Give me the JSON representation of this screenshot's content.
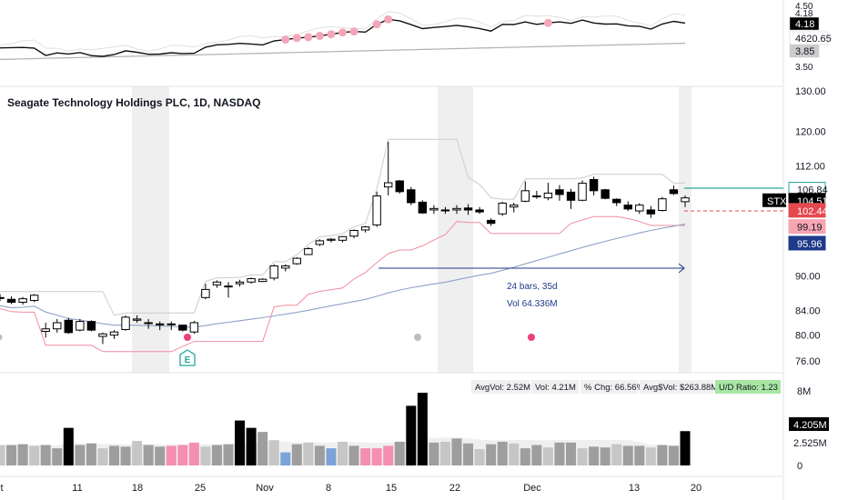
{
  "chart_data": {
    "type": "candlestick",
    "title": "Seagate Technology Holdings PLC, 1D, NASDAQ",
    "symbol": "STX",
    "x_tick_labels": [
      "t",
      "11",
      "18",
      "25",
      "Nov",
      "8",
      "15",
      "22",
      "Dec",
      "13",
      "20"
    ],
    "price_axis": {
      "ticks": [
        "130.00",
        "120.00",
        "112.00",
        "106.84",
        "104.51",
        "102.44",
        "99.19",
        "95.96",
        "90.00",
        "84.00",
        "80.00",
        "76.00"
      ],
      "scale": "log",
      "range": [
        74.5,
        131
      ]
    },
    "price_labels": [
      {
        "value": "106.84",
        "bg": "#ffffff",
        "fg": "#131722",
        "border": "#26a69a"
      },
      {
        "value": "104.51",
        "bg": "#000000",
        "fg": "#ffffff",
        "border": "#000000"
      },
      {
        "value": "102.44",
        "bg": "#e5484d",
        "fg": "#ffffff",
        "border": "#e5484d"
      },
      {
        "value": "99.19",
        "bg": "#f6a5b3",
        "fg": "#131722",
        "border": "#f6a5b3"
      },
      {
        "value": "95.96",
        "bg": "#1e3a8a",
        "fg": "#ffffff",
        "border": "#1e3a8a"
      }
    ],
    "symbol_tag": "STX",
    "candles": [
      [
        86.2,
        86.8,
        85.6,
        86.1
      ],
      [
        85.9,
        86.4,
        85.1,
        85.4
      ],
      [
        85.4,
        86.3,
        85.0,
        86.0
      ],
      [
        85.7,
        86.8,
        85.4,
        86.6
      ],
      [
        80.6,
        82.0,
        79.6,
        81.0
      ],
      [
        81.0,
        82.6,
        80.4,
        82.0
      ],
      [
        82.4,
        82.8,
        80.2,
        80.4
      ],
      [
        80.8,
        82.6,
        80.6,
        82.2
      ],
      [
        82.2,
        82.4,
        80.6,
        80.8
      ],
      [
        79.8,
        80.4,
        78.6,
        80.2
      ],
      [
        80.0,
        80.8,
        79.4,
        80.5
      ],
      [
        80.9,
        83.2,
        80.7,
        82.9
      ],
      [
        82.4,
        83.2,
        82.0,
        82.6
      ],
      [
        82.0,
        82.6,
        81.0,
        82.0
      ],
      [
        81.8,
        82.2,
        80.8,
        81.8
      ],
      [
        81.8,
        82.2,
        80.8,
        81.8
      ],
      [
        81.6,
        81.6,
        80.6,
        80.8
      ],
      [
        80.5,
        82.3,
        80.2,
        82.0
      ],
      [
        86.2,
        88.6,
        85.9,
        87.6
      ],
      [
        88.4,
        89.2,
        87.9,
        88.9
      ],
      [
        88.2,
        88.9,
        86.2,
        88.2
      ],
      [
        88.6,
        89.3,
        88.1,
        88.9
      ],
      [
        88.9,
        89.7,
        88.6,
        89.5
      ],
      [
        89.0,
        89.6,
        88.9,
        89.4
      ],
      [
        89.6,
        92.1,
        89.2,
        91.8
      ],
      [
        91.4,
        92.1,
        90.8,
        91.8
      ],
      [
        92.2,
        93.4,
        92.0,
        93.2
      ],
      [
        93.9,
        95.3,
        93.8,
        95.0
      ],
      [
        95.8,
        96.8,
        95.5,
        96.5
      ],
      [
        96.6,
        97.0,
        96.2,
        96.8
      ],
      [
        96.6,
        97.4,
        96.2,
        97.3
      ],
      [
        97.4,
        98.7,
        97.0,
        98.5
      ],
      [
        98.6,
        99.4,
        98.1,
        99.2
      ],
      [
        99.6,
        106.4,
        99.2,
        105.5
      ],
      [
        107.4,
        117.5,
        105.6,
        108.3
      ],
      [
        108.7,
        108.9,
        106.0,
        106.4
      ],
      [
        106.8,
        107.4,
        103.6,
        104.1
      ],
      [
        104.2,
        104.6,
        101.8,
        102.0
      ],
      [
        102.6,
        103.6,
        101.8,
        102.9
      ],
      [
        102.6,
        103.2,
        101.8,
        102.5
      ],
      [
        102.6,
        103.6,
        101.8,
        102.9
      ],
      [
        103.0,
        103.8,
        101.6,
        102.6
      ],
      [
        102.6,
        103.2,
        101.8,
        102.2
      ],
      [
        100.5,
        100.9,
        99.4,
        99.9
      ],
      [
        101.8,
        104.3,
        101.4,
        104.0
      ],
      [
        103.2,
        104.1,
        102.1,
        103.6
      ],
      [
        104.4,
        108.6,
        104.2,
        106.6
      ],
      [
        105.5,
        106.6,
        104.9,
        105.5
      ],
      [
        105.1,
        108.3,
        104.6,
        106.1
      ],
      [
        106.8,
        107.8,
        104.5,
        105.8
      ],
      [
        106.3,
        107.0,
        102.8,
        104.6
      ],
      [
        104.6,
        108.8,
        104.4,
        108.2
      ],
      [
        109.0,
        109.6,
        105.6,
        106.6
      ],
      [
        106.8,
        107.0,
        104.8,
        105.0
      ],
      [
        104.8,
        105.0,
        103.4,
        104.1
      ],
      [
        103.6,
        104.4,
        102.4,
        102.8
      ],
      [
        102.4,
        104.0,
        101.8,
        103.6
      ],
      [
        102.6,
        103.4,
        101.0,
        101.8
      ],
      [
        102.5,
        105.3,
        102.3,
        104.9
      ],
      [
        106.8,
        107.7,
        105.7,
        106.0
      ],
      [
        104.3,
        105.6,
        103.2,
        105.1
      ]
    ],
    "volume_panel": {
      "axis_ticks": [
        "8M",
        "4.205M",
        "2.525M",
        "0"
      ],
      "value_labels": [
        {
          "value": "4.205M",
          "bg": "#000000",
          "fg": "#ffffff"
        },
        {
          "value": "2.525M",
          "bg": "#ffffff",
          "fg": "#131722"
        }
      ],
      "stats": [
        "AvgVol: 2.52M",
        "Vol: 4.21M",
        "% Chg: 66.56%",
        "Avg$Vol: $263.88M",
        "U/D Ratio: 1.23"
      ],
      "volumes": [
        2.5,
        2.5,
        2.6,
        2.4,
        2.5,
        2.1,
        4.6,
        2.5,
        2.7,
        2.1,
        2.4,
        2.3,
        3.0,
        2.5,
        2.3,
        2.4,
        2.5,
        2.8,
        2.3,
        2.5,
        2.6,
        5.5,
        4.6,
        4.1,
        3.1,
        1.6,
        2.6,
        2.8,
        2.4,
        2.1,
        2.9,
        2.4,
        2.1,
        2.1,
        2.4,
        2.9,
        7.3,
        8.9,
        2.8,
        2.9,
        3.3,
        2.7,
        2.0,
        2.6,
        2.9,
        2.7,
        2.1,
        2.5,
        2.2,
        2.8,
        2.8,
        2.1,
        2.3,
        2.2,
        2.6,
        2.4,
        2.4,
        2.2,
        2.5,
        2.4,
        4.2
      ]
    },
    "rs_panel": {
      "axis_ticks": [
        "4.50",
        "4.18",
        "3.85",
        "3.50"
      ],
      "value_labels": [
        {
          "value": "4.18",
          "bg": "#000000",
          "fg": "#ffffff"
        },
        {
          "value": "4620.65",
          "bg": "#ffffff",
          "fg": "#131722"
        },
        {
          "value": "3.85",
          "bg": "#cccccc",
          "fg": "#131722"
        }
      ]
    },
    "measure": {
      "bars": "24 bars, 35d",
      "volume": "Vol 64.336M"
    },
    "earnings_marker": "E",
    "colors": {
      "up": "#ffffff",
      "down": "#000000",
      "pink": "#f48fb1",
      "blue": "#7ba3d9",
      "ma_blue": "#8fa3c8",
      "teal": "#26a69a",
      "red": "#e5484d",
      "navy": "#1e3a8a",
      "highlight": "#efefef"
    }
  }
}
